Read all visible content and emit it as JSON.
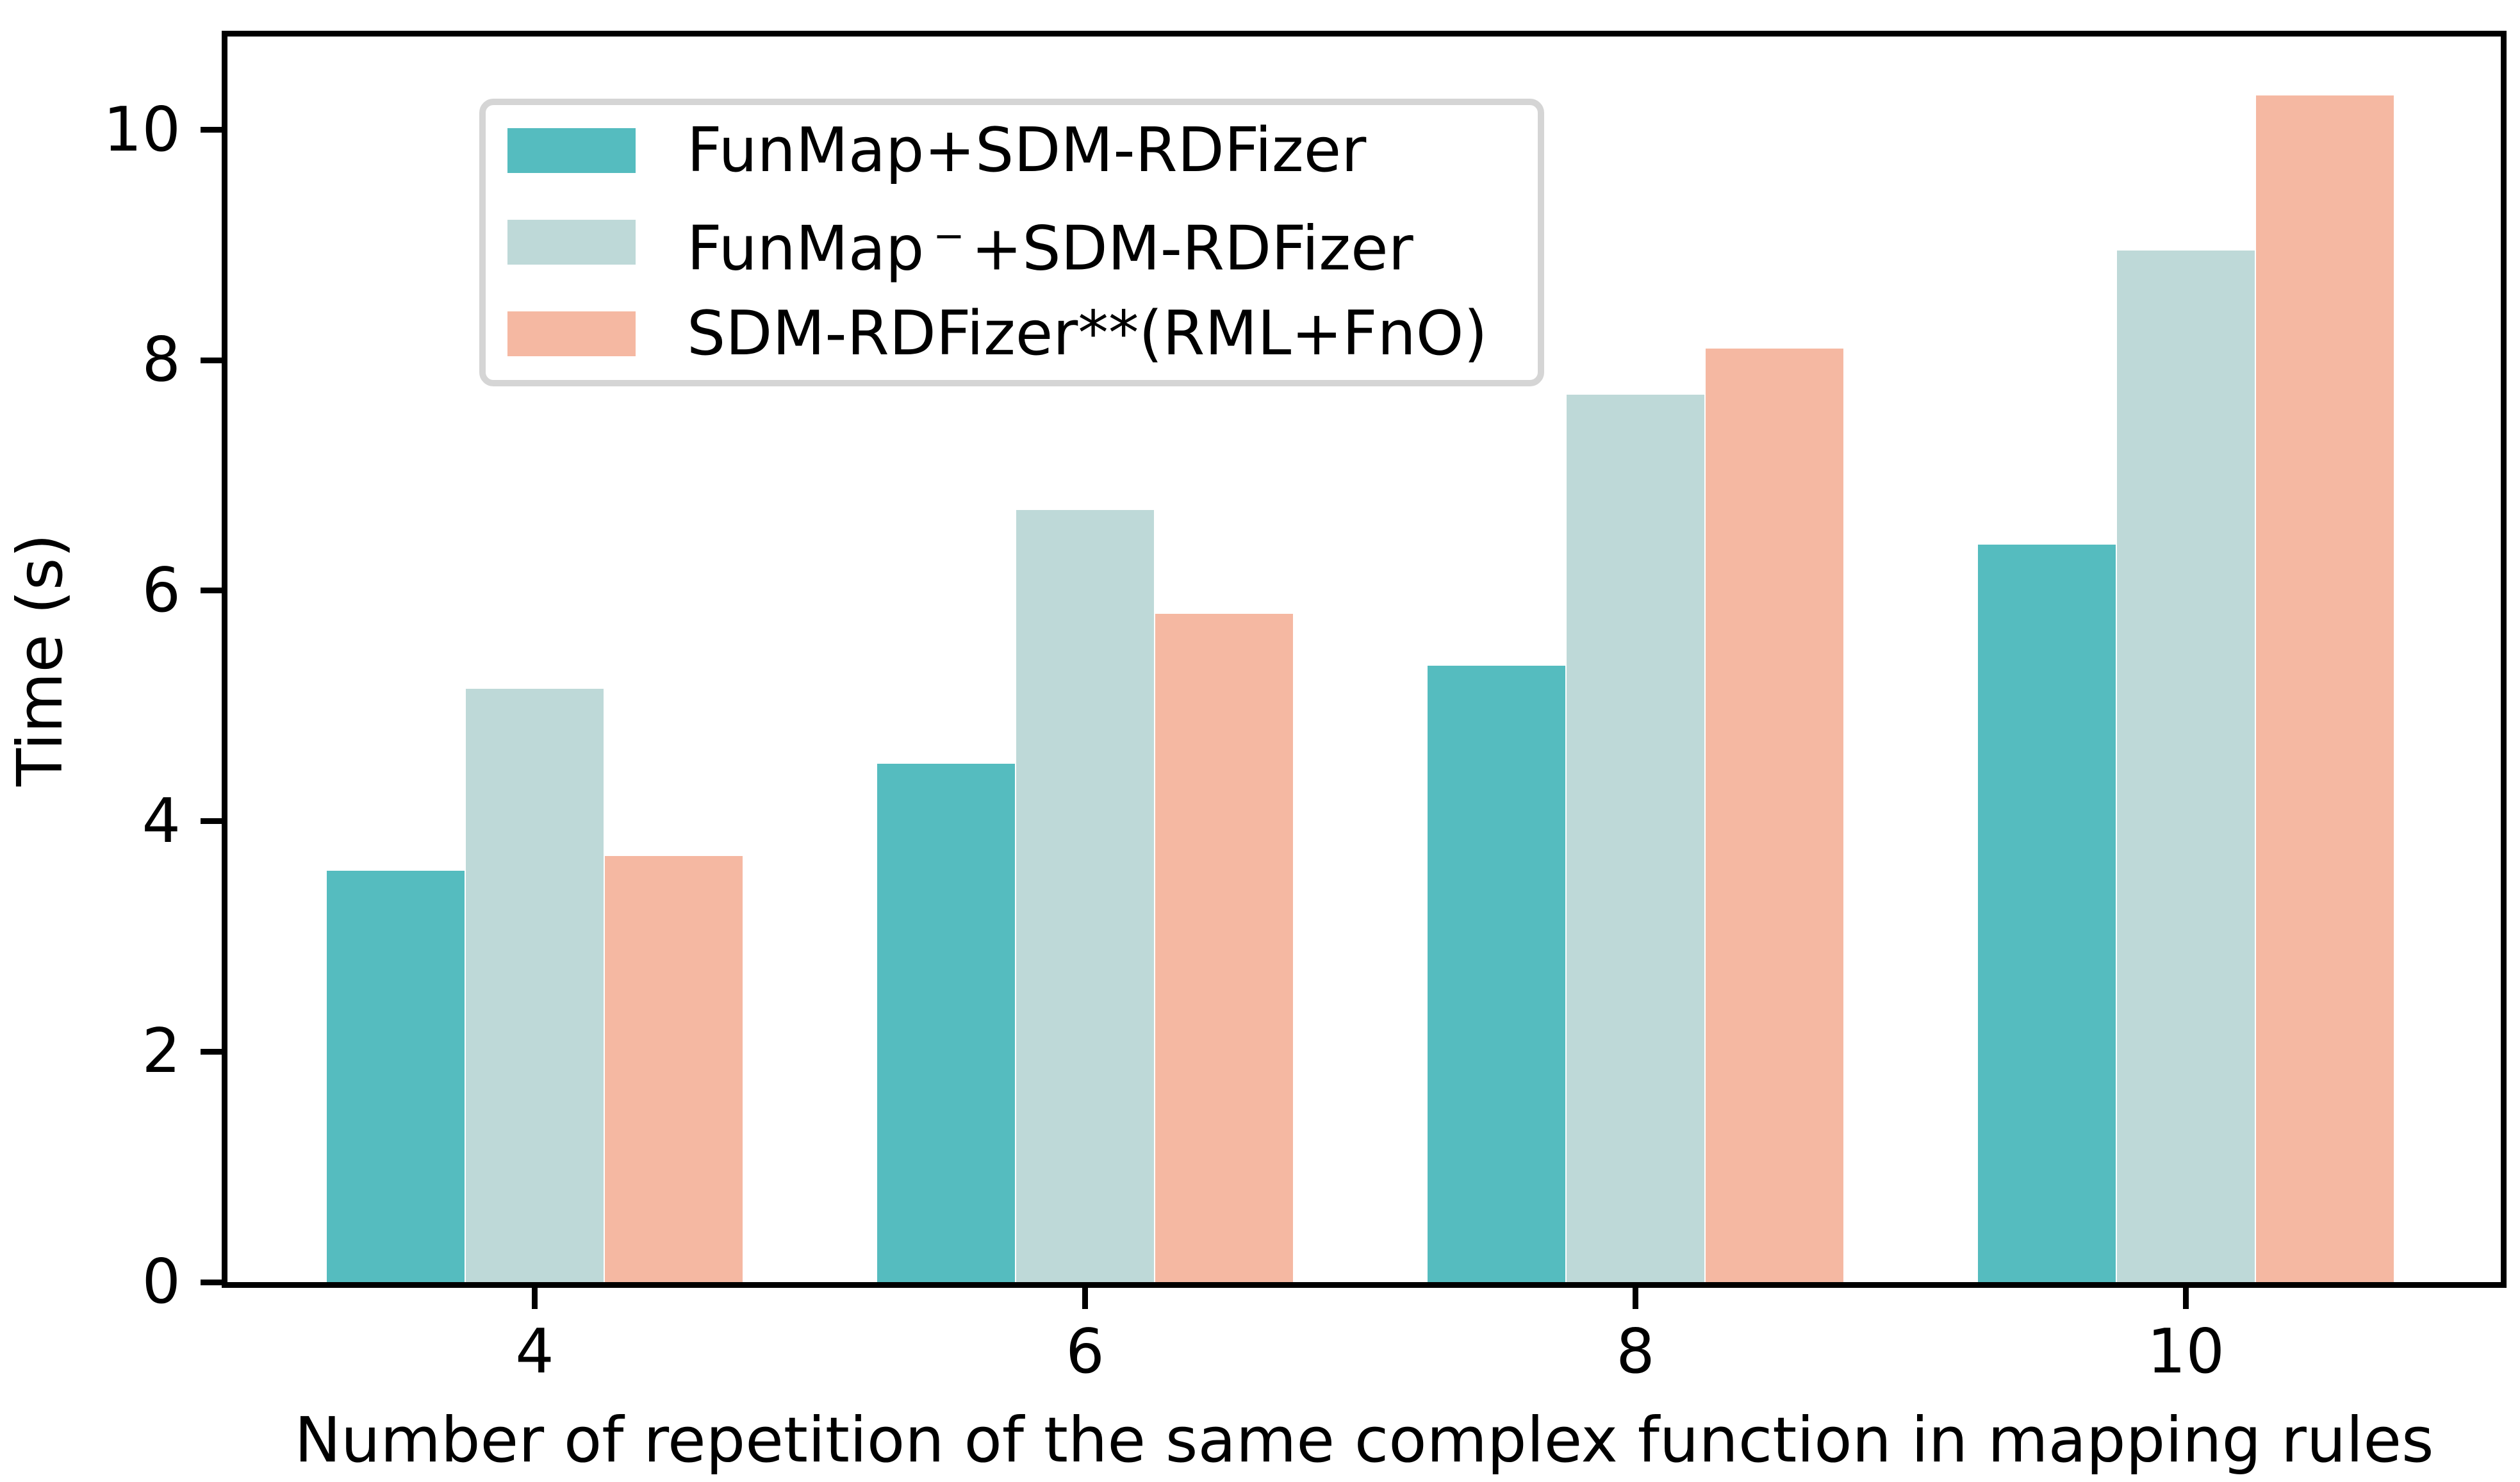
{
  "chart_data": {
    "type": "bar",
    "title": "",
    "categories": [
      "4",
      "6",
      "8",
      "10"
    ],
    "series": [
      {
        "name": "FunMap+SDM-RDFizer",
        "color": "#55bcbf",
        "values": [
          3.57,
          4.5,
          5.35,
          6.4
        ],
        "label_parts": [
          {
            "t": "FunMap+SDM-RDFizer"
          }
        ]
      },
      {
        "name": "FunMap⁻+SDM-RDFizer",
        "color": "#bed9d8",
        "values": [
          5.15,
          6.7,
          7.7,
          8.95
        ],
        "label_parts": [
          {
            "t": "FunMap"
          },
          {
            "t": "−",
            "sup": true
          },
          {
            "t": "+SDM-RDFizer"
          }
        ]
      },
      {
        "name": "SDM-RDFizer**(RML+FnO)",
        "color": "#f5b8a2",
        "values": [
          3.7,
          5.8,
          8.1,
          10.3
        ],
        "label_parts": [
          {
            "t": "SDM-RDFizer**(RML+FnO)"
          }
        ]
      }
    ],
    "xlabel": "Number of repetition of the same complex function in mapping rules",
    "ylabel": "Time (s)",
    "yticks": [
      "0",
      "2",
      "4",
      "6",
      "8",
      "10"
    ],
    "ylim": [
      0,
      10.81
    ],
    "grid": false,
    "legend_position": "upper-left",
    "axis_color": "#000000",
    "legend_border_color": "#d5d5d5",
    "background_color": "#ffffff"
  }
}
